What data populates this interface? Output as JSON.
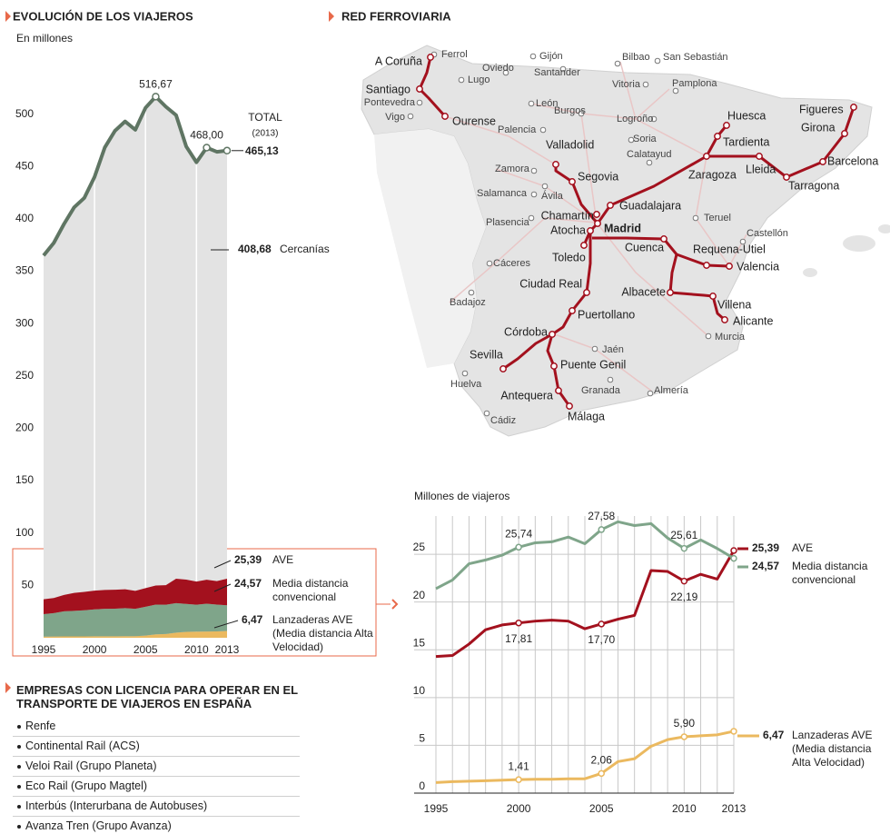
{
  "chart_data": [
    {
      "type": "area",
      "title": "EVOLUCIÓN DE LOS VIAJEROS",
      "subtitle": "En millones",
      "x": [
        1995,
        1996,
        1997,
        1998,
        1999,
        2000,
        2001,
        2002,
        2003,
        2004,
        2005,
        2006,
        2007,
        2008,
        2009,
        2010,
        2011,
        2012,
        2013
      ],
      "xlim": [
        1995,
        2013
      ],
      "xticks": [
        1995,
        2000,
        2005,
        2010,
        2013
      ],
      "ylim": [
        0,
        530
      ],
      "yticks": [
        50,
        100,
        150,
        200,
        250,
        300,
        350,
        400,
        450,
        500
      ],
      "series": [
        {
          "name": "TOTAL",
          "color": "#5f7563",
          "values": [
            365,
            377,
            395,
            411,
            420,
            440,
            468,
            484,
            493,
            485,
            506,
            516.67,
            507,
            499,
            469,
            454,
            468,
            464,
            465.13
          ],
          "value_labels": [
            null,
            null,
            null,
            null,
            null,
            null,
            null,
            null,
            null,
            null,
            null,
            "516,67",
            null,
            null,
            null,
            null,
            "468,00",
            null,
            "465,13"
          ]
        }
      ],
      "total_note": "(2013)",
      "area_color": "#e3e3e3",
      "annotations": [
        {
          "label": "408,68",
          "text": "Cercanías"
        }
      ]
    },
    {
      "type": "line",
      "subtitle": "Millones de viajeros",
      "x": [
        1995,
        1996,
        1997,
        1998,
        1999,
        2000,
        2001,
        2002,
        2003,
        2004,
        2005,
        2006,
        2007,
        2008,
        2009,
        2010,
        2011,
        2012,
        2013
      ],
      "xlim": [
        1995,
        2013
      ],
      "xticks": [
        1995,
        2000,
        2005,
        2010,
        2013
      ],
      "ylim": [
        0,
        29
      ],
      "yticks": [
        0,
        5,
        10,
        15,
        20,
        25
      ],
      "grid": true,
      "series": [
        {
          "name": "AVE",
          "color": "#a3111e",
          "values": [
            14.3,
            14.4,
            15.6,
            17.1,
            17.6,
            17.81,
            18.0,
            18.1,
            18.0,
            17.2,
            17.7,
            18.2,
            18.6,
            23.3,
            23.2,
            22.19,
            22.9,
            22.4,
            25.39
          ],
          "value_labels": [
            null,
            null,
            null,
            null,
            null,
            "17,81",
            null,
            null,
            null,
            null,
            "17,70",
            null,
            null,
            null,
            null,
            "22,19",
            null,
            null,
            "25,39"
          ]
        },
        {
          "name": "Media distancia convencional",
          "color": "#7fa58a",
          "values": [
            21.4,
            22.3,
            24.0,
            24.4,
            24.9,
            25.74,
            26.2,
            26.3,
            26.8,
            26.1,
            27.58,
            28.4,
            28.0,
            28.2,
            26.7,
            25.61,
            26.5,
            25.6,
            24.57
          ],
          "value_labels": [
            null,
            null,
            null,
            null,
            null,
            "25,74",
            null,
            null,
            null,
            null,
            "27,58",
            null,
            null,
            null,
            null,
            "25,61",
            null,
            null,
            "24,57"
          ]
        },
        {
          "name": "Lanzaderas AVE (Media distancia Alta Velocidad)",
          "color": "#ebb95f",
          "values": [
            1.1,
            1.2,
            1.25,
            1.3,
            1.35,
            1.41,
            1.45,
            1.45,
            1.5,
            1.5,
            2.06,
            3.3,
            3.6,
            4.9,
            5.6,
            5.9,
            6.0,
            6.1,
            6.47
          ],
          "value_labels": [
            null,
            null,
            null,
            null,
            null,
            "1,41",
            null,
            null,
            null,
            null,
            "2,06",
            null,
            null,
            null,
            null,
            "5,90",
            null,
            null,
            "6,47"
          ]
        }
      ]
    }
  ],
  "map": {
    "title": "RED FERROVIARIA",
    "stations": [
      "A Coruña",
      "Santiago",
      "Ourense",
      "Valladolid",
      "Segovia",
      "Guadalajara",
      "Madrid",
      "Chamartín",
      "Atocha",
      "Toledo",
      "Ciudad Real",
      "Puertollano",
      "Córdoba",
      "Sevilla",
      "Puente Genil",
      "Antequera",
      "Málaga",
      "Cuenca",
      "Requena-Utiel",
      "Valencia",
      "Albacete",
      "Villena",
      "Alicante",
      "Zaragoza",
      "Huesca",
      "Tardienta",
      "Lleida",
      "Tarragona",
      "Barcelona",
      "Girona",
      "Figueres"
    ],
    "cities": [
      "Ferrol",
      "Gijón",
      "Bilbao",
      "San Sebastián",
      "Oviedo",
      "Lugo",
      "Santander",
      "Vitoria",
      "Pamplona",
      "Pontevedra",
      "Vigo",
      "León",
      "Burgos",
      "Logroño",
      "Palencia",
      "Soria",
      "Calatayud",
      "Zamora",
      "Salamanca",
      "Ávila",
      "Teruel",
      "Castellón",
      "Plasencia",
      "Cáceres",
      "Badajoz",
      "Jaén",
      "Murcia",
      "Huelva",
      "Granada",
      "Almería",
      "Cádiz"
    ]
  },
  "companies": {
    "title": "EMPRESAS CON LICENCIA PARA OPERAR EN EL TRANSPORTE DE VIAJEROS EN ESPAÑA",
    "items": [
      "Renfe",
      "Continental Rail (ACS)",
      "Veloi Rail (Grupo Planeta)",
      "Eco Rail (Grupo Magtel)",
      "Interbús (Interurbana de Autobuses)",
      "Avanza Tren (Grupo Avanza)"
    ]
  }
}
